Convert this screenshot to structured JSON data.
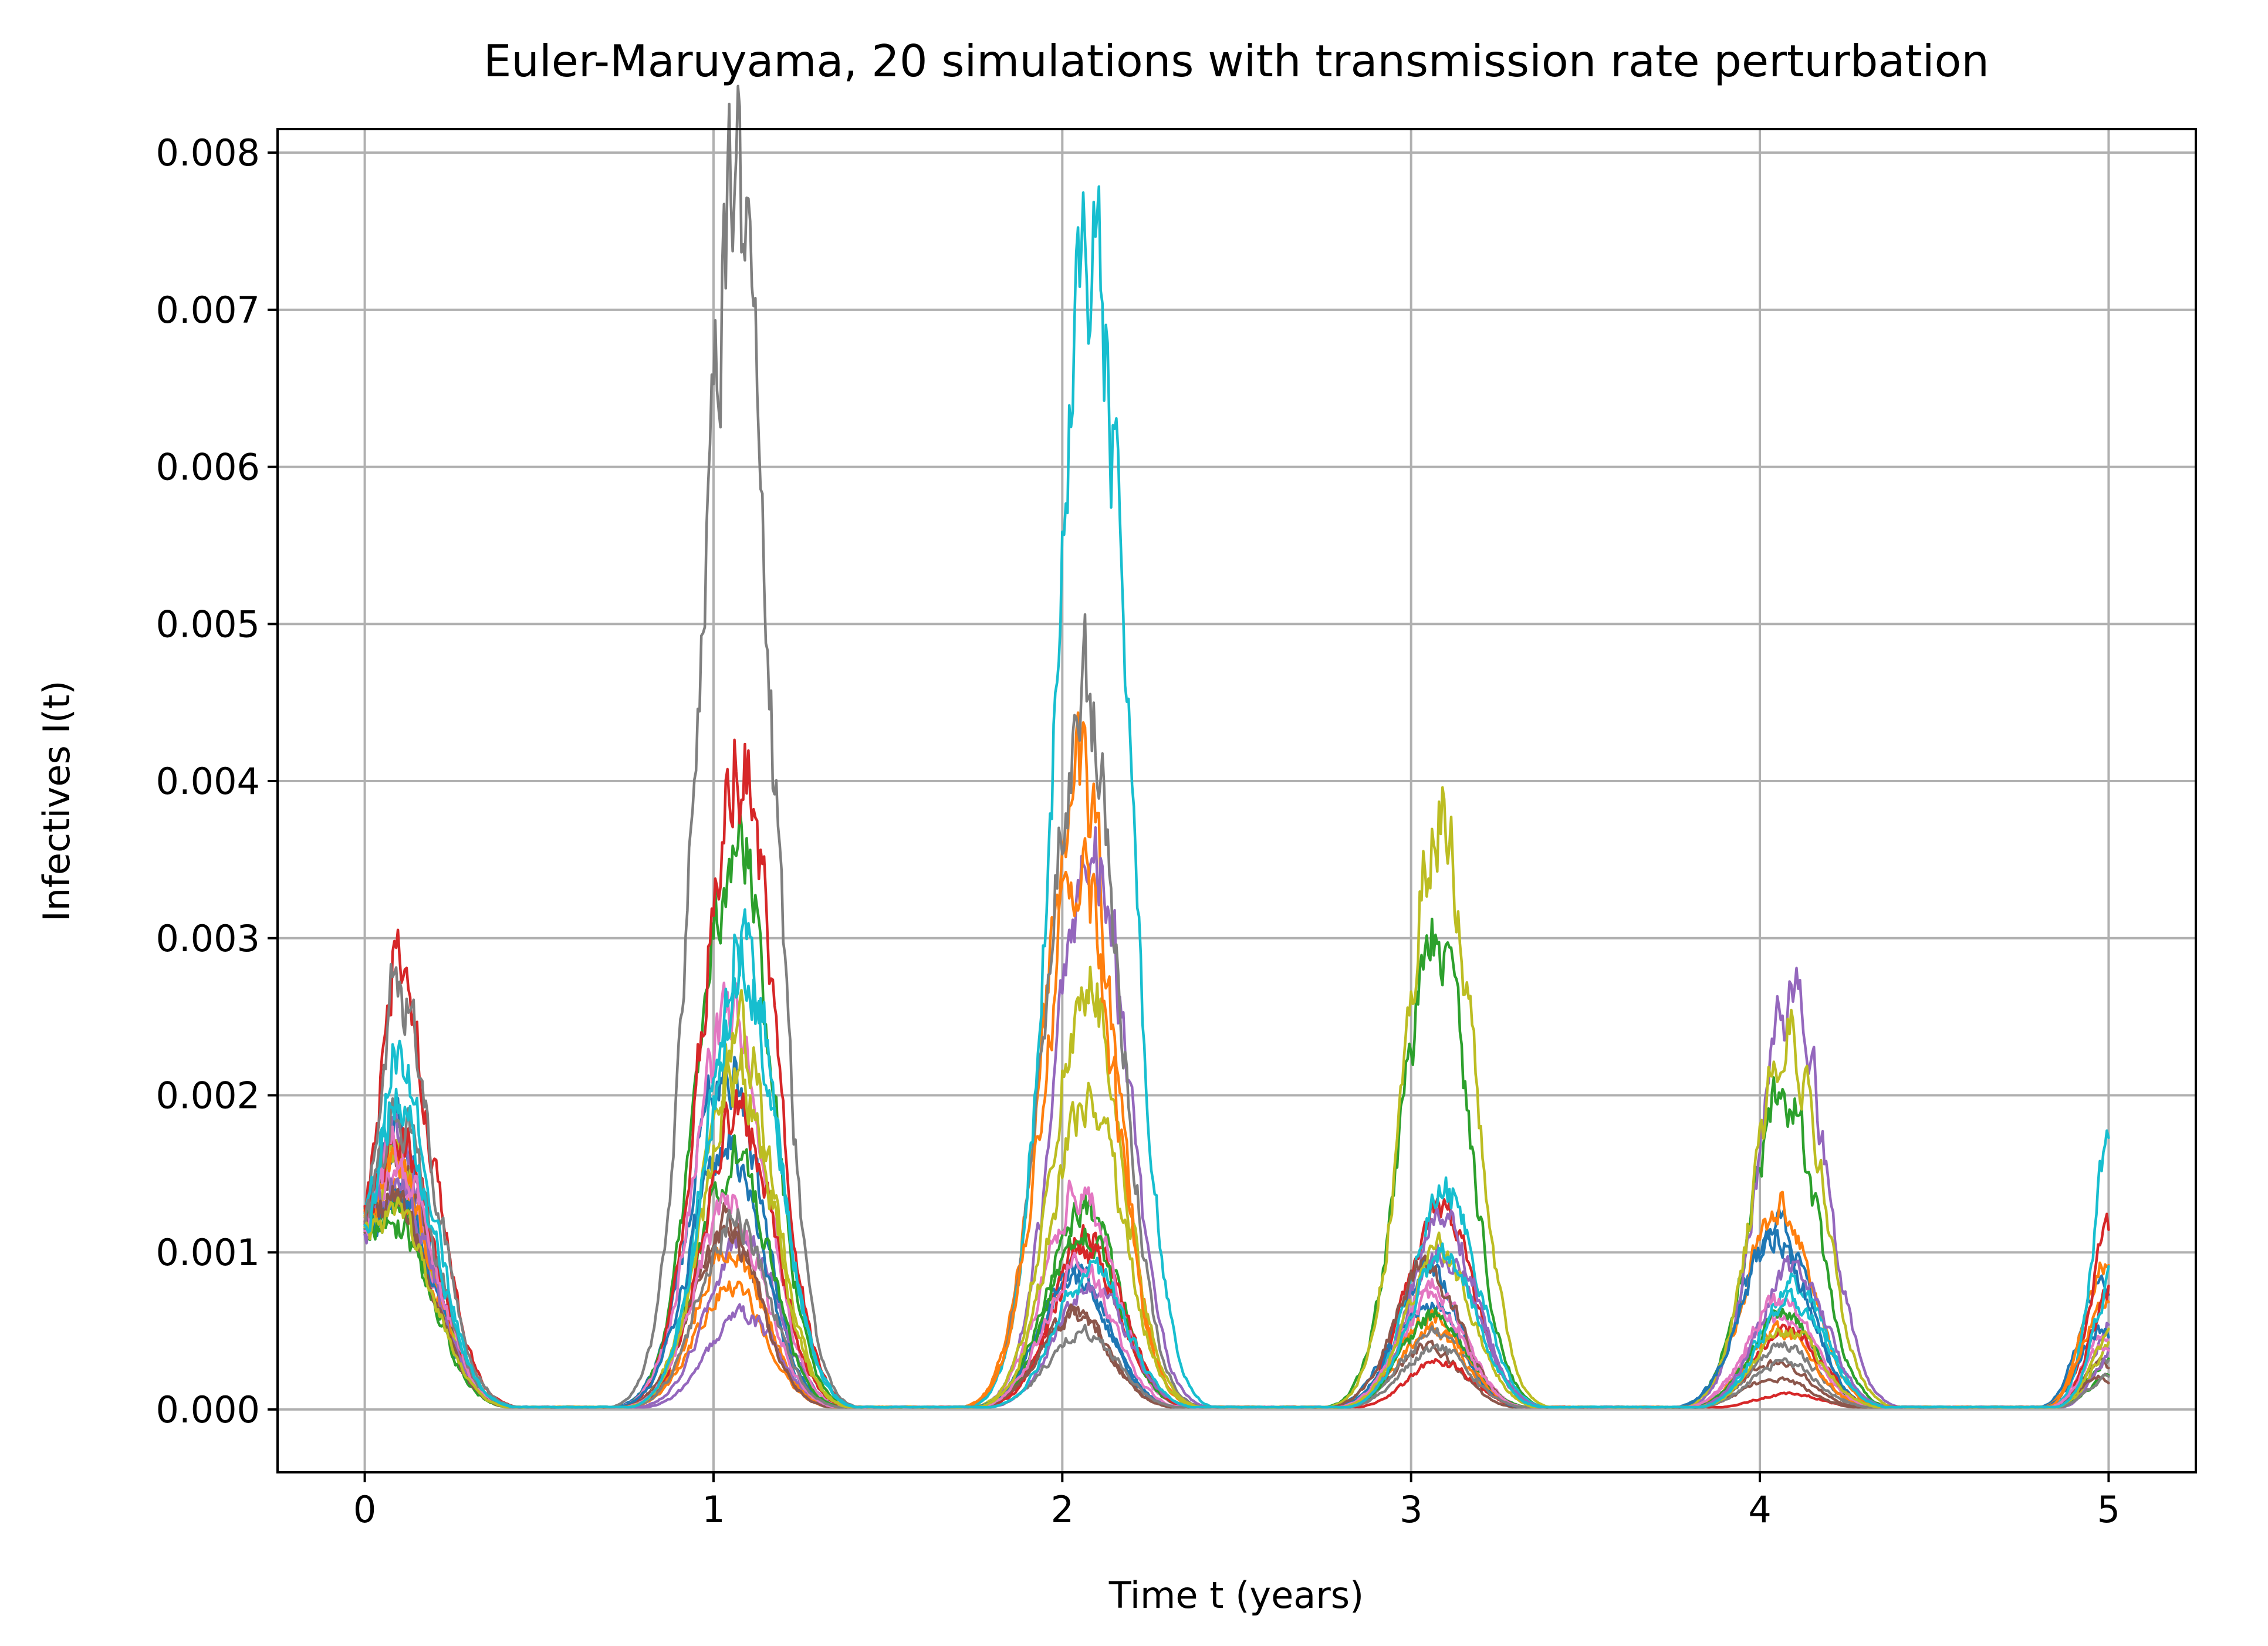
{
  "chart_data": {
    "type": "line",
    "title": "Euler-Maruyama, 20 simulations with transmission rate perturbation",
    "xlabel": "Time t (years)",
    "ylabel": "Infectives I(t)",
    "xlim": [
      -0.25,
      5.25
    ],
    "ylim": [
      -0.0004,
      0.00815
    ],
    "x_ticks": [
      0,
      1,
      2,
      3,
      4,
      5
    ],
    "x_tick_labels": [
      "0",
      "1",
      "2",
      "3",
      "4",
      "5"
    ],
    "y_ticks": [
      0,
      0.001,
      0.002,
      0.003,
      0.004,
      0.005,
      0.006,
      0.007,
      0.008
    ],
    "y_tick_labels": [
      "0.000",
      "0.001",
      "0.002",
      "0.003",
      "0.004",
      "0.005",
      "0.006",
      "0.007",
      "0.008"
    ],
    "grid": true,
    "legend": "none",
    "initial_value": 0.0012,
    "x_range": [
      0,
      5
    ],
    "colors": [
      "#1f77b4",
      "#ff7f0e",
      "#2ca02c",
      "#d62728",
      "#9467bd",
      "#8c564b",
      "#e377c2",
      "#7f7f7f",
      "#bcbd22",
      "#17becf"
    ],
    "series": [
      {
        "color": "#1f77b4",
        "peaks": [
          0.0018,
          0.0022,
          0.0009,
          0.0009,
          0.0012,
          0.0008
        ]
      },
      {
        "color": "#ff7f0e",
        "peaks": [
          0.0014,
          0.0008,
          0.004,
          0.0005,
          0.0013,
          0.0009
        ]
      },
      {
        "color": "#2ca02c",
        "peaks": [
          0.0013,
          0.0037,
          0.0013,
          0.003,
          0.002,
          0.0003
        ]
      },
      {
        "color": "#d62728",
        "peaks": [
          0.0028,
          0.0042,
          0.0011,
          0.0013,
          0.0001,
          0.0012
        ]
      },
      {
        "color": "#9467bd",
        "peaks": [
          0.0017,
          0.0011,
          0.0036,
          0.001,
          0.0026,
          0.0006
        ]
      },
      {
        "color": "#8c564b",
        "peaks": [
          0.0016,
          0.0012,
          0.0006,
          0.0004,
          0.0003,
          0.0003
        ]
      },
      {
        "color": "#e377c2",
        "peaks": [
          0.0015,
          0.0025,
          0.0014,
          0.0008,
          0.0006,
          0.0005
        ]
      },
      {
        "color": "#7f7f7f",
        "peaks": [
          0.0027,
          0.0077,
          0.0046,
          0.0005,
          0.0004,
          0.0003
        ]
      },
      {
        "color": "#bcbd22",
        "peaks": [
          0.0016,
          0.0024,
          0.0027,
          0.0038,
          0.0024,
          0.0004
        ]
      },
      {
        "color": "#17becf",
        "peaks": [
          0.0022,
          0.003,
          0.0075,
          0.0014,
          0.0008,
          0.002
        ]
      },
      {
        "color": "#1f77b4",
        "peaks": [
          0.0014,
          0.0017,
          0.0008,
          0.0007,
          0.0011,
          0.0005
        ]
      },
      {
        "color": "#ff7f0e",
        "peaks": [
          0.0016,
          0.001,
          0.0035,
          0.0006,
          0.0005,
          0.0007
        ]
      },
      {
        "color": "#2ca02c",
        "peaks": [
          0.0012,
          0.0016,
          0.0011,
          0.0006,
          0.0006,
          0.0002
        ]
      },
      {
        "color": "#d62728",
        "peaks": [
          0.0018,
          0.0019,
          0.001,
          0.0003,
          0.0005,
          0.0008
        ]
      },
      {
        "color": "#9467bd",
        "peaks": [
          0.0015,
          0.0006,
          0.0008,
          0.0012,
          0.0009,
          0.0004
        ]
      },
      {
        "color": "#8c564b",
        "peaks": [
          0.0013,
          0.0011,
          0.0006,
          0.0009,
          0.0002,
          0.0002
        ]
      },
      {
        "color": "#e377c2",
        "peaks": [
          0.0017,
          0.0013,
          0.0009,
          0.0007,
          0.0007,
          0.0004
        ]
      },
      {
        "color": "#7f7f7f",
        "peaks": [
          0.0019,
          0.0012,
          0.0005,
          0.0004,
          0.0003,
          0.0002
        ]
      },
      {
        "color": "#bcbd22",
        "peaks": [
          0.0013,
          0.0021,
          0.002,
          0.001,
          0.0005,
          0.0005
        ]
      },
      {
        "color": "#17becf",
        "peaks": [
          0.002,
          0.0028,
          0.0009,
          0.001,
          0.0007,
          0.0009
        ]
      }
    ]
  }
}
